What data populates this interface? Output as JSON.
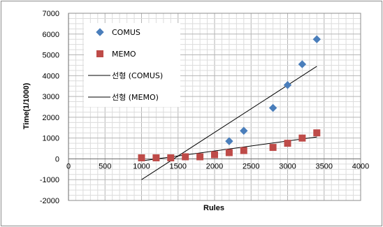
{
  "chart_data": {
    "type": "scatter",
    "xlabel": "Rules",
    "ylabel": "Time(1/1000)",
    "xlim": [
      0,
      4000
    ],
    "ylim": [
      -2000,
      7000
    ],
    "xticks": [
      "0",
      "500",
      "1000",
      "1500",
      "2000",
      "2500",
      "3000",
      "3500",
      "4000"
    ],
    "yticks": [
      "-2000",
      "-1000",
      "0",
      "1000",
      "2000",
      "3000",
      "4000",
      "5000",
      "6000",
      "7000"
    ],
    "grid": true,
    "legend_position": "top-left",
    "series": [
      {
        "name": "COMUS",
        "marker": "diamond",
        "color": "#4a7ebb",
        "x": [
          2200,
          2400,
          2800,
          3000,
          3200,
          3400
        ],
        "y": [
          850,
          1350,
          2450,
          3550,
          4550,
          5750
        ]
      },
      {
        "name": "MEMO",
        "marker": "square",
        "color": "#be4b48",
        "x": [
          1000,
          1200,
          1400,
          1600,
          1800,
          2000,
          2200,
          2400,
          2800,
          3000,
          3200,
          3400
        ],
        "y": [
          50,
          50,
          50,
          100,
          100,
          200,
          300,
          400,
          550,
          750,
          1000,
          1250
        ]
      }
    ],
    "trendlines": [
      {
        "name": "선형 (COMUS)",
        "color": "#000000",
        "x": [
          1000,
          3400
        ],
        "y": [
          -1000,
          4450
        ]
      },
      {
        "name": "선형 (MEMO)",
        "color": "#000000",
        "x": [
          1000,
          3400
        ],
        "y": [
          -100,
          1050
        ]
      }
    ]
  }
}
